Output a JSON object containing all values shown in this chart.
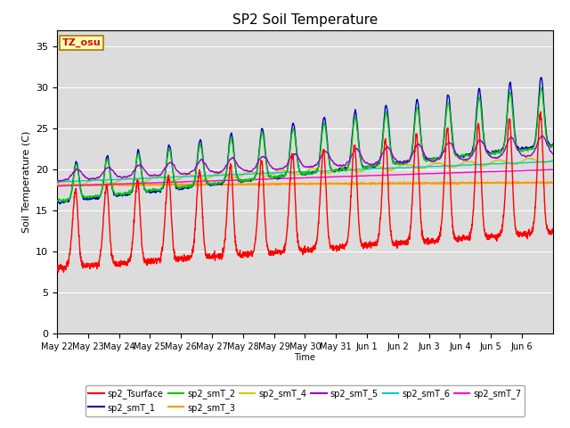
{
  "title": "SP2 Soil Temperature",
  "ylabel": "Soil Temperature (C)",
  "xlabel": "Time",
  "tz_label": "TZ_osu",
  "ylim": [
    0,
    37
  ],
  "yticks": [
    0,
    5,
    10,
    15,
    20,
    25,
    30,
    35
  ],
  "background_color": "#dcdcdc",
  "legend": [
    {
      "label": "sp2_Tsurface",
      "color": "#ff0000"
    },
    {
      "label": "sp2_smT_1",
      "color": "#0000bb"
    },
    {
      "label": "sp2_smT_2",
      "color": "#00cc00"
    },
    {
      "label": "sp2_smT_3",
      "color": "#ff9900"
    },
    {
      "label": "sp2_smT_4",
      "color": "#cccc00"
    },
    {
      "label": "sp2_smT_5",
      "color": "#9900cc"
    },
    {
      "label": "sp2_smT_6",
      "color": "#00cccc"
    },
    {
      "label": "sp2_smT_7",
      "color": "#ff00cc"
    }
  ],
  "n_days": 16,
  "day_labels": [
    "May 22",
    "May 23",
    "May 24",
    "May 25",
    "May 26",
    "May 27",
    "May 28",
    "May 29",
    "May 30",
    "May 31",
    "Jun 1",
    "Jun 2",
    "Jun 3",
    "Jun 4",
    "Jun 5",
    "Jun 6"
  ]
}
